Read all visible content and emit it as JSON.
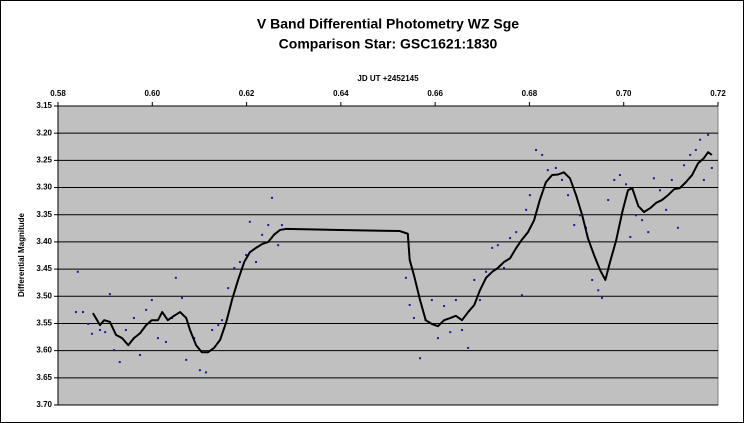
{
  "chart_data": {
    "type": "scatter",
    "title": "V Band Differential Photometry WZ Sge",
    "subtitle": "Comparison Star: GSC1621:1830",
    "x_label": "JD UT +2452145",
    "y_label": "Differential Magnitude",
    "xlim": [
      0.58,
      0.72
    ],
    "xticks": [
      {
        "value": 0.58,
        "label": "0.58"
      },
      {
        "value": 0.6,
        "label": "0.60"
      },
      {
        "value": 0.62,
        "label": "0.62"
      },
      {
        "value": 0.64,
        "label": "0.64"
      },
      {
        "value": 0.66,
        "label": "0.66"
      },
      {
        "value": 0.68,
        "label": "0.68"
      },
      {
        "value": 0.7,
        "label": "0.70"
      },
      {
        "value": 0.72,
        "label": "0.72"
      }
    ],
    "ylim": [
      3.15,
      3.7
    ],
    "yticks": [
      {
        "value": 3.15,
        "label": "3.15"
      },
      {
        "value": 3.2,
        "label": "3.20"
      },
      {
        "value": 3.25,
        "label": "3.25"
      },
      {
        "value": 3.3,
        "label": "3.30"
      },
      {
        "value": 3.35,
        "label": "3.35"
      },
      {
        "value": 3.4,
        "label": "3.40"
      },
      {
        "value": 3.45,
        "label": "3.45"
      },
      {
        "value": 3.5,
        "label": "3.50"
      },
      {
        "value": 3.55,
        "label": "3.55"
      },
      {
        "value": 3.6,
        "label": "3.60"
      },
      {
        "value": 3.65,
        "label": "3.65"
      },
      {
        "value": 3.7,
        "label": "3.70"
      }
    ],
    "y_reversed": true,
    "x_axis_position": "top",
    "grid": true,
    "series": [
      {
        "mode": "markers",
        "color": "#1a1a9c",
        "x": [
          0.5842,
          0.5838,
          0.5853,
          0.5864,
          0.5872,
          0.5889,
          0.59,
          0.591,
          0.5919,
          0.5931,
          0.5944,
          0.5961,
          0.5974,
          0.5987,
          0.5999,
          0.6012,
          0.6029,
          0.6042,
          0.605,
          0.6063,
          0.6072,
          0.6089,
          0.6101,
          0.6114,
          0.6127,
          0.614,
          0.6148,
          0.6161,
          0.6174,
          0.6186,
          0.6199,
          0.6207,
          0.622,
          0.6233,
          0.6246,
          0.6254,
          0.6267,
          0.6275,
          0.6538,
          0.6546,
          0.6555,
          0.6568,
          0.658,
          0.6593,
          0.6606,
          0.6619,
          0.6632,
          0.6644,
          0.6657,
          0.667,
          0.6683,
          0.6695,
          0.6708,
          0.6721,
          0.6733,
          0.6746,
          0.6759,
          0.6772,
          0.6784,
          0.6793,
          0.6801,
          0.6814,
          0.6827,
          0.6839,
          0.6856,
          0.6869,
          0.6882,
          0.6895,
          0.6907,
          0.692,
          0.6933,
          0.6946,
          0.6954,
          0.6967,
          0.698,
          0.6992,
          0.7005,
          0.7014,
          0.7026,
          0.7039,
          0.7052,
          0.7064,
          0.7077,
          0.709,
          0.7102,
          0.7115,
          0.7128,
          0.7141,
          0.7153,
          0.7162,
          0.717,
          0.7179,
          0.7187
        ],
        "values": [
          3.455,
          3.529,
          3.529,
          3.551,
          3.569,
          3.562,
          3.566,
          3.496,
          3.599,
          3.621,
          3.562,
          3.54,
          3.608,
          3.525,
          3.507,
          3.577,
          3.584,
          3.54,
          3.466,
          3.503,
          3.617,
          3.577,
          3.636,
          3.64,
          3.562,
          3.553,
          3.544,
          3.485,
          3.448,
          3.437,
          3.424,
          3.363,
          3.437,
          3.387,
          3.369,
          3.319,
          3.406,
          3.369,
          3.466,
          3.516,
          3.54,
          3.614,
          3.544,
          3.507,
          3.577,
          3.518,
          3.566,
          3.507,
          3.562,
          3.595,
          3.47,
          3.507,
          3.455,
          3.411,
          3.406,
          3.448,
          3.393,
          3.382,
          3.498,
          3.341,
          3.314,
          3.231,
          3.24,
          3.268,
          3.264,
          3.286,
          3.314,
          3.369,
          3.351,
          3.374,
          3.47,
          3.489,
          3.503,
          3.323,
          3.286,
          3.277,
          3.294,
          3.391,
          3.351,
          3.36,
          3.382,
          3.283,
          3.305,
          3.341,
          3.286,
          3.374,
          3.259,
          3.24,
          3.231,
          3.212,
          3.286,
          3.203,
          3.264
        ]
      },
      {
        "mode": "line",
        "color": "#000000",
        "x": [
          0.5874,
          0.5883,
          0.5889,
          0.5898,
          0.591,
          0.5923,
          0.5936,
          0.5949,
          0.5961,
          0.5974,
          0.5987,
          0.5999,
          0.6012,
          0.6021,
          0.6033,
          0.6046,
          0.6059,
          0.6072,
          0.608,
          0.6093,
          0.6105,
          0.6118,
          0.6131,
          0.6144,
          0.6157,
          0.6169,
          0.6182,
          0.6195,
          0.6207,
          0.622,
          0.6233,
          0.6246,
          0.6258,
          0.6271,
          0.6284,
          0.6398,
          0.6525,
          0.6542,
          0.6546,
          0.6555,
          0.6568,
          0.658,
          0.6593,
          0.6606,
          0.6619,
          0.6632,
          0.6644,
          0.6657,
          0.667,
          0.6683,
          0.6695,
          0.6708,
          0.6721,
          0.6733,
          0.6746,
          0.6759,
          0.6772,
          0.6784,
          0.6797,
          0.681,
          0.6822,
          0.6835,
          0.6848,
          0.6861,
          0.6873,
          0.6886,
          0.6899,
          0.6912,
          0.6924,
          0.6937,
          0.695,
          0.6961,
          0.6971,
          0.6984,
          0.6997,
          0.7009,
          0.7018,
          0.7031,
          0.7043,
          0.7056,
          0.7069,
          0.7081,
          0.7094,
          0.7107,
          0.7119,
          0.7132,
          0.7145,
          0.7158,
          0.717,
          0.7179,
          0.7187
        ],
        "values": [
          3.531,
          3.544,
          3.553,
          3.544,
          3.547,
          3.571,
          3.577,
          3.59,
          3.577,
          3.568,
          3.553,
          3.544,
          3.544,
          3.529,
          3.544,
          3.536,
          3.529,
          3.54,
          3.562,
          3.59,
          3.603,
          3.603,
          3.595,
          3.58,
          3.547,
          3.507,
          3.47,
          3.437,
          3.419,
          3.411,
          3.404,
          3.4,
          3.387,
          3.378,
          3.376,
          3.378,
          3.38,
          3.385,
          3.433,
          3.461,
          3.507,
          3.544,
          3.551,
          3.555,
          3.544,
          3.54,
          3.536,
          3.544,
          3.529,
          3.516,
          3.489,
          3.466,
          3.455,
          3.448,
          3.437,
          3.43,
          3.411,
          3.396,
          3.382,
          3.36,
          3.323,
          3.29,
          3.277,
          3.276,
          3.272,
          3.283,
          3.314,
          3.351,
          3.393,
          3.424,
          3.452,
          3.47,
          3.437,
          3.397,
          3.345,
          3.305,
          3.301,
          3.334,
          3.345,
          3.338,
          3.328,
          3.323,
          3.314,
          3.303,
          3.301,
          3.29,
          3.277,
          3.255,
          3.246,
          3.235,
          3.24
        ]
      }
    ]
  }
}
